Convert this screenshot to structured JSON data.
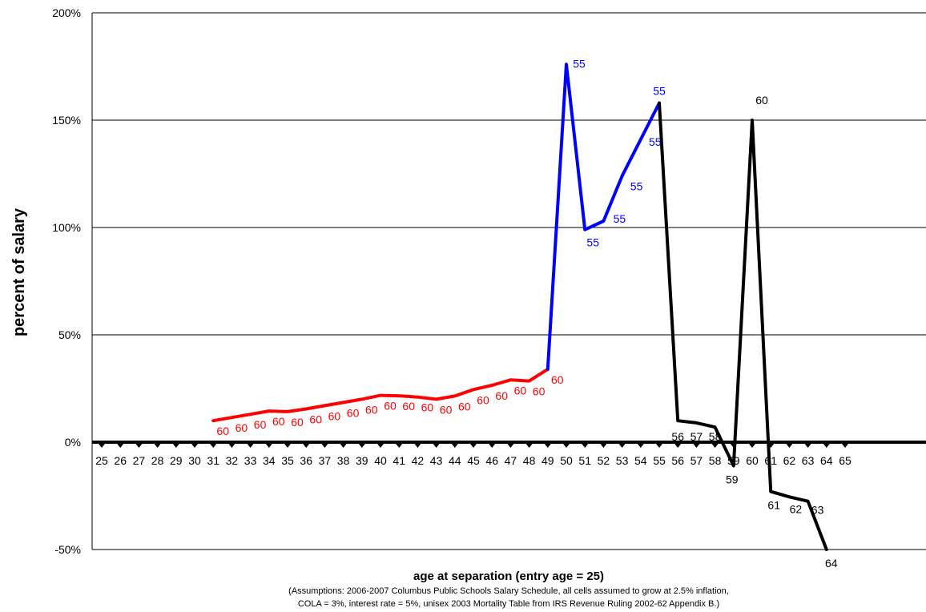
{
  "chart_data": {
    "type": "line",
    "title": "",
    "xlabel": "age at separation (entry age = 25)",
    "ylabel": "percent of salary",
    "notes": [
      "(Assumptions:  2006-2007 Columbus Public Schools Salary Schedule, all cells assumed to grow at 2.5% inflation,",
      "COLA = 3%, interest rate = 5%, unisex 2003 Mortality Table from IRS Revenue Ruling 2002-62 Appendix B.)"
    ],
    "ylim": [
      -50,
      200
    ],
    "yticks": [
      -50,
      0,
      50,
      100,
      150,
      200
    ],
    "ytick_labels": [
      "-50%",
      "0%",
      "50%",
      "100%",
      "150%",
      "200%"
    ],
    "x_categories": [
      "25",
      "26",
      "27",
      "28",
      "29",
      "30",
      "31",
      "32",
      "33",
      "34",
      "35",
      "36",
      "37",
      "38",
      "39",
      "40",
      "41",
      "42",
      "43",
      "44",
      "45",
      "46",
      "47",
      "48",
      "49",
      "50",
      "51",
      "52",
      "53",
      "54",
      "55",
      "56",
      "57",
      "58",
      "59",
      "60",
      "61",
      "62",
      "63",
      "64",
      "65"
    ],
    "grid": true,
    "series": [
      {
        "color": "#ff0000",
        "x": [
          31,
          32,
          33,
          34,
          35,
          36,
          37,
          38,
          39,
          40,
          41,
          42,
          43,
          44,
          45,
          46,
          47,
          48,
          49
        ],
        "y": [
          10,
          11.5,
          13,
          14.5,
          14.2,
          15.5,
          17,
          18.5,
          20,
          21.8,
          21.6,
          21,
          20,
          21.5,
          24.5,
          26.5,
          29,
          28.5,
          34
        ],
        "labels": [
          "60",
          "60",
          "60",
          "60",
          "60",
          "60",
          "60",
          "60",
          "60",
          "60",
          "60",
          "60",
          "60",
          "60",
          "60",
          "60",
          "60",
          "60",
          "60"
        ]
      },
      {
        "color": "#0000ff",
        "x": [
          49,
          50,
          51,
          52,
          53,
          54,
          55
        ],
        "y": [
          34,
          176,
          99,
          103,
          124,
          141,
          158
        ],
        "labels": [
          "55",
          "55",
          "55",
          "55",
          "55",
          "55"
        ]
      },
      {
        "color": "#000000",
        "x": [
          55,
          56,
          57,
          58,
          59,
          60,
          61,
          62,
          63,
          64
        ],
        "y": [
          158,
          10,
          9,
          7,
          -11,
          150,
          -23,
          -25.5,
          -27.5,
          -50
        ],
        "labels": [
          "56",
          "57",
          "58",
          "59",
          "60",
          "61",
          "62",
          "63",
          "64"
        ]
      }
    ]
  }
}
